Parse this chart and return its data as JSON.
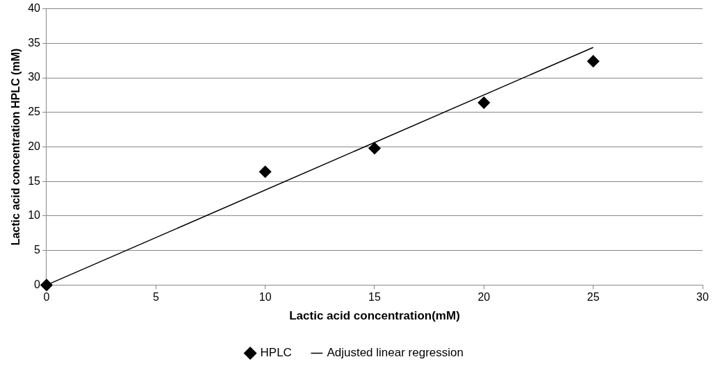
{
  "chart_data": {
    "type": "scatter",
    "xlabel": "Lactic acid concentration(mM)",
    "ylabel": "Lactic acid concentration HPLC (mM)",
    "xlim": [
      0,
      30
    ],
    "xticks": [
      0,
      5,
      10,
      15,
      20,
      25,
      30
    ],
    "ylim": [
      0,
      40
    ],
    "yticks": [
      0,
      5,
      10,
      15,
      20,
      25,
      30,
      35,
      40
    ],
    "grid": "y",
    "legend": "bottom",
    "series": [
      {
        "name": "HPLC",
        "type": "scatter",
        "color": "#000000",
        "marker": "diamond",
        "x": [
          0,
          10,
          15,
          20,
          25
        ],
        "values": [
          0,
          16.4,
          19.8,
          26.4,
          32.4
        ]
      },
      {
        "name": "Adjusted linear regression",
        "type": "line",
        "color": "#000000",
        "marker": "none",
        "line_style": "solid",
        "x": [
          0,
          25
        ],
        "values": [
          0,
          34.4
        ]
      }
    ]
  }
}
